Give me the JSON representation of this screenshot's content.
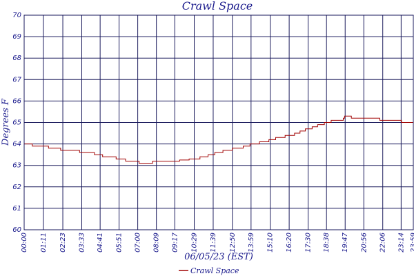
{
  "chart_data": {
    "type": "line",
    "title": "Crawl Space",
    "xlabel": "06/05/23 (EST)",
    "ylabel": "Degrees F",
    "ylim": [
      60,
      70
    ],
    "yticks": [
      "60",
      "61",
      "62",
      "63",
      "64",
      "65",
      "66",
      "67",
      "68",
      "69",
      "70"
    ],
    "xlim": [
      "00:00",
      "23:59"
    ],
    "xticks": [
      "00:00",
      "01:11",
      "02:23",
      "03:33",
      "04:41",
      "05:51",
      "07:00",
      "08:09",
      "09:17",
      "10:29",
      "11:39",
      "12:50",
      "13:59",
      "15:10",
      "16:20",
      "17:30",
      "18:38",
      "19:47",
      "20:56",
      "22:06",
      "23:14",
      "23:59"
    ],
    "grid": true,
    "legend_position": "bottom-center",
    "series": [
      {
        "name": "Crawl Space",
        "color": "#a00000",
        "points": [
          [
            "00:00",
            64.0
          ],
          [
            "00:25",
            64.0
          ],
          [
            "00:30",
            63.9
          ],
          [
            "01:25",
            63.9
          ],
          [
            "01:30",
            63.8
          ],
          [
            "02:10",
            63.8
          ],
          [
            "02:15",
            63.7
          ],
          [
            "03:20",
            63.7
          ],
          [
            "03:25",
            63.6
          ],
          [
            "04:10",
            63.6
          ],
          [
            "04:20",
            63.5
          ],
          [
            "04:45",
            63.5
          ],
          [
            "04:50",
            63.4
          ],
          [
            "05:30",
            63.4
          ],
          [
            "05:40",
            63.3
          ],
          [
            "06:10",
            63.3
          ],
          [
            "06:15",
            63.2
          ],
          [
            "07:00",
            63.2
          ],
          [
            "07:05",
            63.1
          ],
          [
            "07:50",
            63.1
          ],
          [
            "07:55",
            63.2
          ],
          [
            "09:30",
            63.2
          ],
          [
            "09:35",
            63.25
          ],
          [
            "10:10",
            63.3
          ],
          [
            "10:50",
            63.4
          ],
          [
            "11:20",
            63.5
          ],
          [
            "11:45",
            63.6
          ],
          [
            "12:15",
            63.7
          ],
          [
            "12:50",
            63.8
          ],
          [
            "13:30",
            63.9
          ],
          [
            "13:55",
            64.0
          ],
          [
            "14:30",
            64.1
          ],
          [
            "15:05",
            64.2
          ],
          [
            "15:30",
            64.3
          ],
          [
            "16:05",
            64.4
          ],
          [
            "16:40",
            64.5
          ],
          [
            "17:00",
            64.6
          ],
          [
            "17:20",
            64.7
          ],
          [
            "17:45",
            64.8
          ],
          [
            "18:05",
            64.9
          ],
          [
            "18:30",
            65.0
          ],
          [
            "18:55",
            65.1
          ],
          [
            "19:40",
            65.2
          ],
          [
            "19:45",
            65.3
          ],
          [
            "20:05",
            65.3
          ],
          [
            "20:10",
            65.2
          ],
          [
            "21:50",
            65.2
          ],
          [
            "21:55",
            65.1
          ],
          [
            "23:10",
            65.1
          ],
          [
            "23:15",
            65.0
          ],
          [
            "23:59",
            65.0
          ]
        ]
      }
    ]
  }
}
